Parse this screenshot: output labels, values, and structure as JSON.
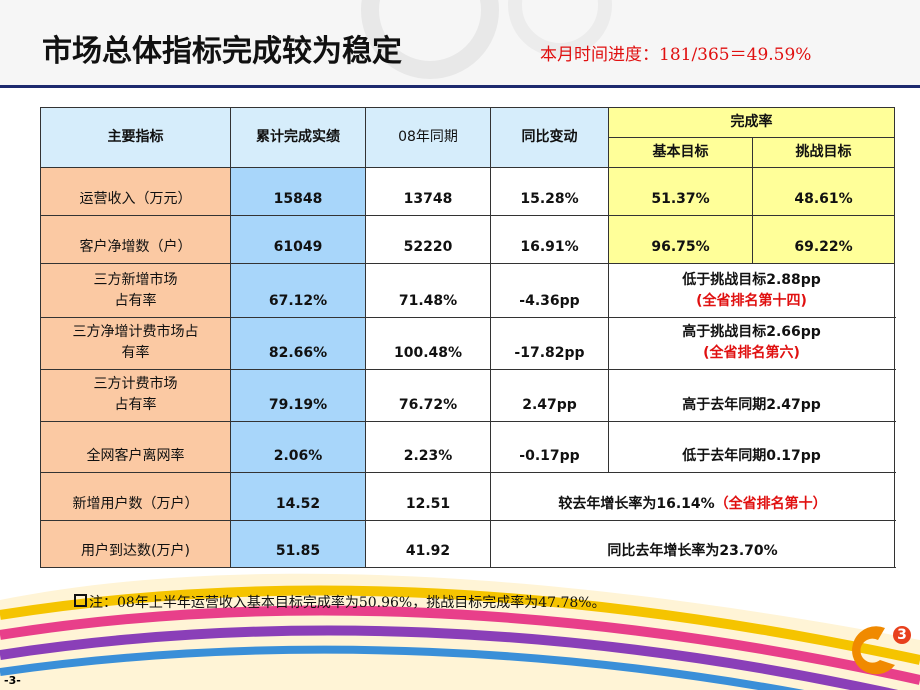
{
  "header": {
    "title": "市场总体指标完成较为稳定",
    "progress": "本月时间进度：181/365＝49.59%"
  },
  "table": {
    "headers": {
      "indicator": "主要指标",
      "actual": "累计完成实绩",
      "last_year": "08年同期",
      "change": "同比变动",
      "completion": "完成率",
      "basic": "基本目标",
      "challenge": "挑战目标"
    },
    "rows": [
      {
        "indicator": [
          "运营收入（万元）"
        ],
        "cells": [
          "15848",
          "13748",
          "15.28%",
          "51.37%",
          "48.61%"
        ]
      },
      {
        "indicator": [
          "客户净增数（户）"
        ],
        "cells": [
          "61049",
          "52220",
          "16.91%",
          "96.75%",
          "69.22%"
        ]
      },
      {
        "indicator": [
          "三方新增市场",
          "占有率"
        ],
        "cells": [
          "67.12%",
          "71.48%",
          "-4.36pp"
        ],
        "note": "低于挑战目标2.88pp",
        "rank": "(全省排名第十四)"
      },
      {
        "indicator": [
          "三方净增计费市场占",
          "有率"
        ],
        "cells": [
          "82.66%",
          "100.48%",
          "-17.82pp"
        ],
        "note": "高于挑战目标2.66pp",
        "rank": "(全省排名第六)"
      },
      {
        "indicator": [
          "三方计费市场",
          "占有率"
        ],
        "cells": [
          "79.19%",
          "76.72%",
          "2.47pp"
        ],
        "note": "高于去年同期2.47pp"
      },
      {
        "indicator": [
          "全网客户离网率"
        ],
        "cells": [
          "2.06%",
          "2.23%",
          "-0.17pp"
        ],
        "note": "低于去年同期0.17pp"
      },
      {
        "indicator": [
          "新增用户数（万户）"
        ],
        "cells": [
          "14.52",
          "12.51"
        ],
        "note": "较去年增长率为16.14%",
        "rank": "（全省排名第十）"
      },
      {
        "indicator": [
          "用户到达数(万户)"
        ],
        "cells": [
          "51.85",
          "41.92"
        ],
        "note": "同比去年增长率为23.70%"
      }
    ]
  },
  "footnote": "注：08年上半年运营收入基本目标完成率为50.96%，挑战目标完成率为47.78%。",
  "logo": {
    "mark": "3"
  },
  "page_number": "-3-"
}
